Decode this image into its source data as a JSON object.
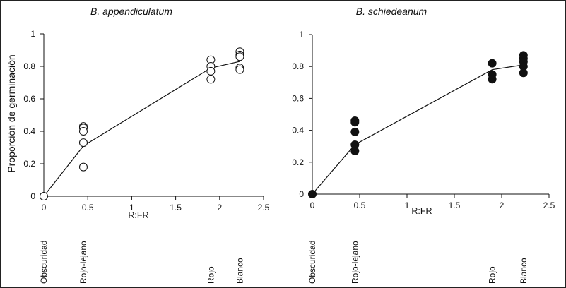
{
  "chart_data": [
    {
      "type": "scatter",
      "title": "B. appendiculatum",
      "xlabel": "R:FR",
      "ylabel": "Proporción de  germinación",
      "xlim": [
        0,
        2.5
      ],
      "ylim": [
        0,
        1
      ],
      "xticks": [
        "0",
        "0.5",
        "1",
        "1.5",
        "2",
        "2.5"
      ],
      "yticks": [
        "0",
        "0.2",
        "0.4",
        "0.6",
        "0.8",
        "1"
      ],
      "marker": "open-circle",
      "points": [
        {
          "x": 0,
          "y": 0
        },
        {
          "x": 0.45,
          "y": 0.43
        },
        {
          "x": 0.45,
          "y": 0.42
        },
        {
          "x": 0.45,
          "y": 0.4
        },
        {
          "x": 0.45,
          "y": 0.33
        },
        {
          "x": 0.45,
          "y": 0.18
        },
        {
          "x": 1.9,
          "y": 0.84
        },
        {
          "x": 1.9,
          "y": 0.8
        },
        {
          "x": 1.9,
          "y": 0.77
        },
        {
          "x": 1.9,
          "y": 0.72
        },
        {
          "x": 2.23,
          "y": 0.89
        },
        {
          "x": 2.23,
          "y": 0.87
        },
        {
          "x": 2.23,
          "y": 0.86
        },
        {
          "x": 2.23,
          "y": 0.79
        },
        {
          "x": 2.23,
          "y": 0.78
        }
      ],
      "fit_line": [
        {
          "x": 0,
          "y": 0
        },
        {
          "x": 0.45,
          "y": 0.31
        },
        {
          "x": 1.9,
          "y": 0.79
        },
        {
          "x": 2.23,
          "y": 0.83
        }
      ],
      "conditions": [
        {
          "label": "Obscuridad",
          "x": 0
        },
        {
          "label": "Rojo-lejano",
          "x": 0.45
        },
        {
          "label": "Rojo",
          "x": 1.9
        },
        {
          "label": "Blanco",
          "x": 2.23
        }
      ]
    },
    {
      "type": "scatter",
      "title": "B. schiedeanum",
      "xlabel": "R:FR",
      "ylabel": "",
      "xlim": [
        0,
        2.5
      ],
      "ylim": [
        0,
        1
      ],
      "xticks": [
        "0",
        "0.5",
        "1",
        "1.5",
        "2",
        "2.5"
      ],
      "yticks": [
        "0",
        "0.2",
        "0.4",
        "0.6",
        "0.8",
        "1"
      ],
      "marker": "filled-circle",
      "points": [
        {
          "x": 0,
          "y": 0
        },
        {
          "x": 0.45,
          "y": 0.46
        },
        {
          "x": 0.45,
          "y": 0.45
        },
        {
          "x": 0.45,
          "y": 0.39
        },
        {
          "x": 0.45,
          "y": 0.31
        },
        {
          "x": 0.45,
          "y": 0.27
        },
        {
          "x": 1.9,
          "y": 0.82
        },
        {
          "x": 1.9,
          "y": 0.75
        },
        {
          "x": 1.9,
          "y": 0.72
        },
        {
          "x": 2.23,
          "y": 0.87
        },
        {
          "x": 2.23,
          "y": 0.85
        },
        {
          "x": 2.23,
          "y": 0.83
        },
        {
          "x": 2.23,
          "y": 0.8
        },
        {
          "x": 2.23,
          "y": 0.76
        }
      ],
      "fit_line": [
        {
          "x": 0,
          "y": 0
        },
        {
          "x": 0.45,
          "y": 0.31
        },
        {
          "x": 1.9,
          "y": 0.78
        },
        {
          "x": 2.23,
          "y": 0.81
        }
      ],
      "conditions": [
        {
          "label": "Obscuridad",
          "x": 0
        },
        {
          "label": "Rojo-lejano",
          "x": 0.45
        },
        {
          "label": "Rojo",
          "x": 1.9
        },
        {
          "label": "Blanco",
          "x": 2.23
        }
      ]
    }
  ]
}
